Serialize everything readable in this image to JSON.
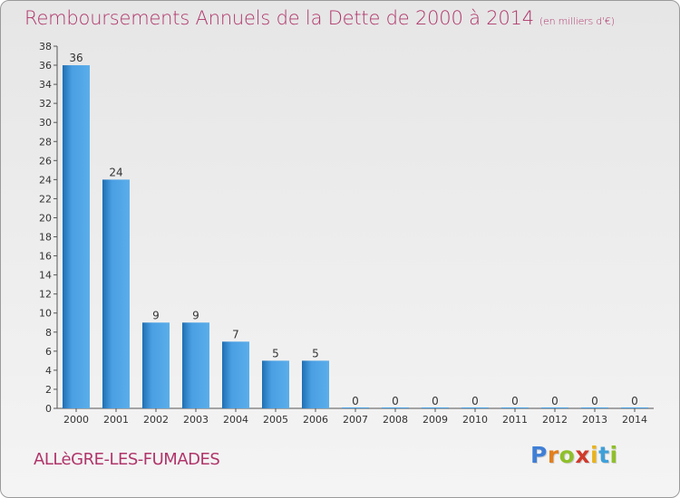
{
  "title": "Remboursements Annuels de la Dette de 2000 à 2014",
  "unit_label": "(en milliers d'€)",
  "commune": "ALLèGRE-LES-FUMADES",
  "logo": {
    "letters": [
      "P",
      "r",
      "o",
      "x",
      "i",
      "t",
      "i"
    ],
    "colors": [
      "#3f7fd6",
      "#e2801d",
      "#8fbf2a",
      "#d03a2b",
      "#e7b31f",
      "#3fa0d8",
      "#8fbf2a"
    ]
  },
  "colors": {
    "bar": "#4a9fe3",
    "bar_dark": "#1f6fb3",
    "title": "#b0356a"
  },
  "chart_data": {
    "type": "bar",
    "categories": [
      "2000",
      "2001",
      "2002",
      "2003",
      "2004",
      "2005",
      "2006",
      "2007",
      "2008",
      "2009",
      "2010",
      "2011",
      "2012",
      "2013",
      "2014"
    ],
    "values": [
      36,
      24,
      9,
      9,
      7,
      5,
      5,
      0,
      0,
      0,
      0,
      0,
      0,
      0,
      0
    ],
    "value_labels": [
      "36",
      "24",
      "9",
      "9",
      "7",
      "5",
      "5",
      "0",
      "0",
      "0",
      "0",
      "0",
      "0",
      "0",
      "0"
    ],
    "ylim": [
      0,
      38
    ],
    "yticks": [
      0,
      2,
      4,
      6,
      8,
      10,
      12,
      14,
      16,
      18,
      20,
      22,
      24,
      26,
      28,
      30,
      32,
      34,
      36,
      38
    ],
    "grid": false,
    "legend": "none",
    "xlabel": "",
    "ylabel": ""
  }
}
